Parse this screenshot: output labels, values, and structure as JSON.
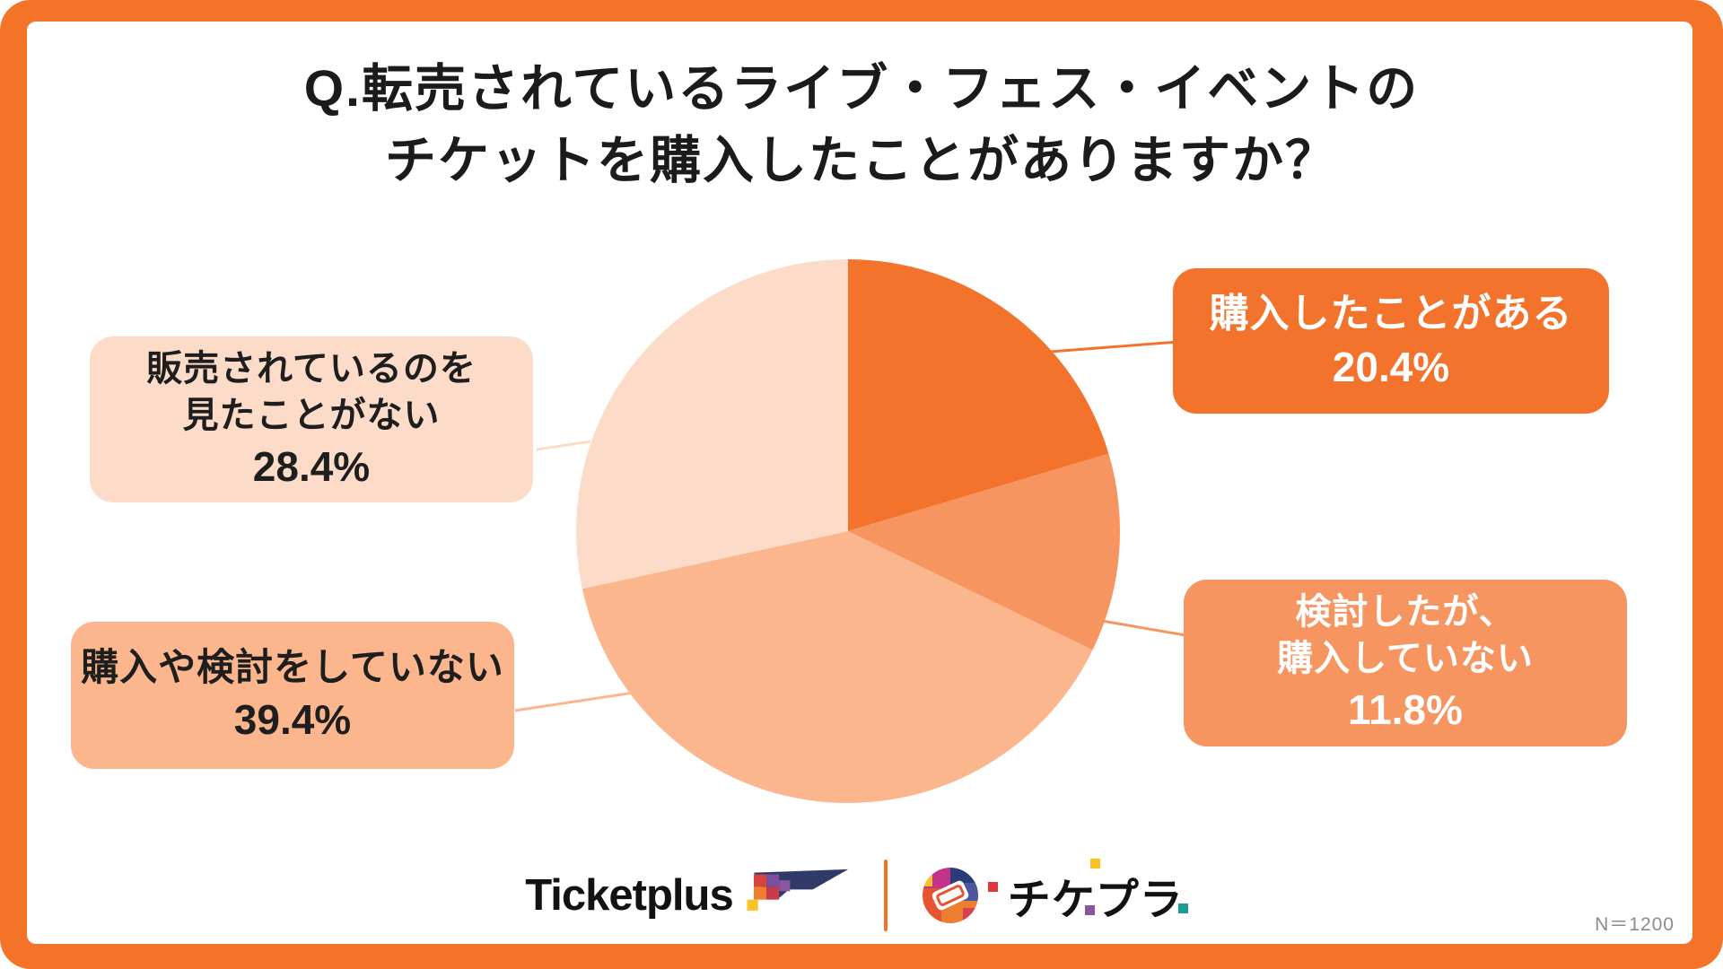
{
  "frame": {
    "border_color": "#F47329",
    "background_color": "#FFFFFF"
  },
  "title": {
    "line1": "Q.転売されているライブ・フェス・イベントの",
    "line2": "チケットを購入したことがありますか？"
  },
  "chart_data": {
    "type": "pie",
    "title": "転売されているライブ・フェス・イベントのチケットを購入したことがありますか？",
    "start_angle_deg": 0,
    "direction": "clockwise",
    "slices": [
      {
        "label": "購入したことがある",
        "value": 20.4,
        "color": "#F4732C",
        "text_color": "#FFFFFF"
      },
      {
        "label": "検討したが、購入していない",
        "value": 11.8,
        "color": "#F79560",
        "text_color": "#FFFFFF"
      },
      {
        "label": "購入や検討をしていない",
        "value": 39.4,
        "color": "#FBB68D",
        "text_color": "#1E1E1E"
      },
      {
        "label": "販売されているのを見たことがない",
        "value": 28.4,
        "color": "#FCDCC8",
        "text_color": "#1E1E1E"
      }
    ],
    "legend_position": "callout-boxes",
    "sample_size": "N＝1200"
  },
  "callouts": [
    {
      "id": "purchased",
      "lines": [
        "購入したことがある"
      ],
      "pct": "20.4%"
    },
    {
      "id": "considered",
      "lines": [
        "検討したが、",
        "購入していない"
      ],
      "pct": "11.8%"
    },
    {
      "id": "never_seen",
      "lines": [
        "販売されているのを",
        "見たことがない"
      ],
      "pct": "28.4%"
    },
    {
      "id": "not_considered",
      "lines": [
        "購入や検討をしていない"
      ],
      "pct": "39.4%"
    }
  ],
  "footer": {
    "ticketplus_label": "Ticketplus",
    "chikepura_label": "チケプラ",
    "sample_size": "N＝1200"
  }
}
